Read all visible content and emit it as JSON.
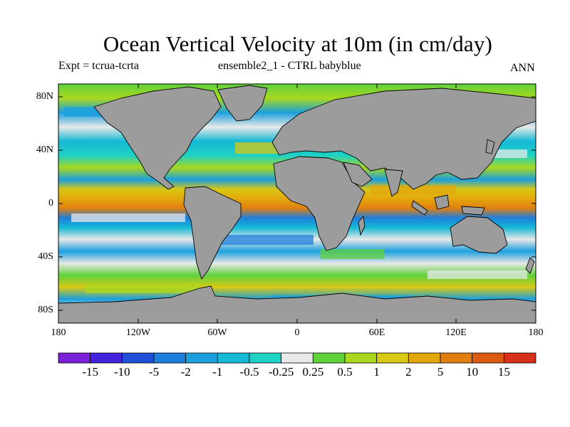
{
  "title": "Ocean Vertical Velocity at 10m (in cm/day)",
  "subtitle_left": "Expt = tcrua-tcrta",
  "subtitle_center": "ensemble2_1 - CTRL babyblue",
  "subtitle_right": "ANN",
  "lat_labels": [
    "80N",
    "40N",
    "0",
    "40S",
    "80S"
  ],
  "lon_labels": [
    "180",
    "120W",
    "60W",
    "0",
    "60E",
    "120E",
    "180"
  ],
  "colorbar": {
    "labels": [
      "-15",
      "-10",
      "-5",
      "-2",
      "-1",
      "-0.5",
      "-0.25",
      "0.25",
      "0.5",
      "1",
      "2",
      "5",
      "10",
      "15"
    ],
    "colors": [
      "#7a22d8",
      "#4422dd",
      "#1f4fd9",
      "#1e7fdc",
      "#1ba0dd",
      "#15b9d6",
      "#1ed2c4",
      "#e8e8e8",
      "#60d23c",
      "#a9d81e",
      "#d9c814",
      "#e3a70c",
      "#e07f10",
      "#dd5a12",
      "#d8301a"
    ]
  },
  "colors": {
    "land": "#9c9c9c",
    "coast": "#000000"
  }
}
